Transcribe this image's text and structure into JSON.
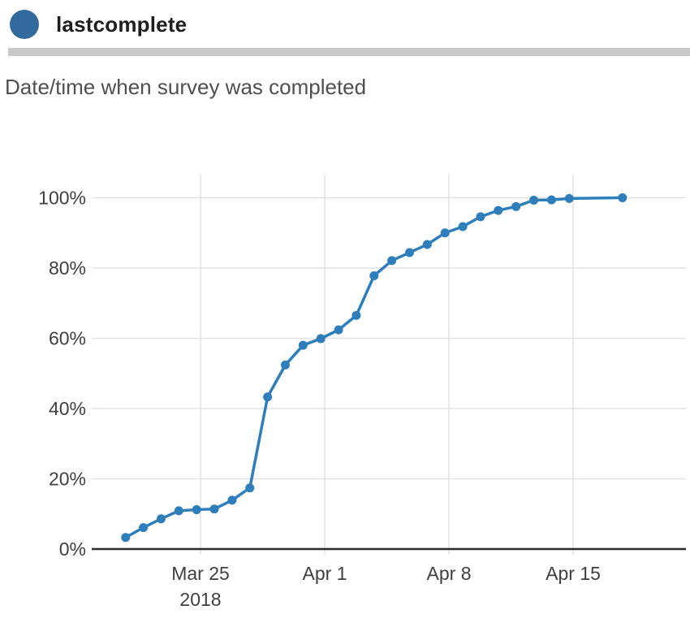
{
  "header": {
    "variable_name": "lastcomplete",
    "description": "Date/time when survey was completed",
    "dot_color": "#336a9e"
  },
  "chart_data": {
    "type": "line",
    "title": "",
    "xlabel": "",
    "ylabel": "",
    "ylim": [
      0,
      100
    ],
    "grid": true,
    "legend": "none",
    "line_color": "#2e7ebc",
    "gridline_color": "#e2e2e2",
    "axis_line_color": "#2b2b2b",
    "tick_label_color": "#3f3f3f",
    "y_ticks": [
      {
        "value": 0,
        "label": "0%"
      },
      {
        "value": 20,
        "label": "20%"
      },
      {
        "value": 40,
        "label": "40%"
      },
      {
        "value": 60,
        "label": "60%"
      },
      {
        "value": 80,
        "label": "80%"
      },
      {
        "value": 100,
        "label": "100%"
      }
    ],
    "x_ticks": [
      {
        "day_offset": 0,
        "label": "Mar 25",
        "sublabel": "2018"
      },
      {
        "day_offset": 7,
        "label": "Apr 1",
        "sublabel": ""
      },
      {
        "day_offset": 14,
        "label": "Apr 8",
        "sublabel": ""
      },
      {
        "day_offset": 21,
        "label": "Apr 15",
        "sublabel": ""
      }
    ],
    "points": [
      {
        "date": "Mar 20 2018",
        "day_offset": -4.22,
        "value": 3.3
      },
      {
        "date": "Mar 21 2018",
        "day_offset": -3.22,
        "value": 6.1
      },
      {
        "date": "Mar 22 2018",
        "day_offset": -2.22,
        "value": 8.6
      },
      {
        "date": "Mar 23 2018",
        "day_offset": -1.22,
        "value": 10.9
      },
      {
        "date": "Mar 24 2018",
        "day_offset": -0.22,
        "value": 11.2
      },
      {
        "date": "Mar 25 2018",
        "day_offset": 0.78,
        "value": 11.4
      },
      {
        "date": "Mar 26 2018",
        "day_offset": 1.78,
        "value": 13.9
      },
      {
        "date": "Mar 27 2018",
        "day_offset": 2.78,
        "value": 17.4
      },
      {
        "date": "Mar 28 2018",
        "day_offset": 3.78,
        "value": 43.3
      },
      {
        "date": "Mar 29 2018",
        "day_offset": 4.78,
        "value": 52.4
      },
      {
        "date": "Mar 30 2018",
        "day_offset": 5.78,
        "value": 58.0
      },
      {
        "date": "Mar 31 2018",
        "day_offset": 6.78,
        "value": 59.9
      },
      {
        "date": "Apr 1 2018",
        "day_offset": 7.78,
        "value": 62.4
      },
      {
        "date": "Apr 2 2018",
        "day_offset": 8.78,
        "value": 66.5
      },
      {
        "date": "Apr 3 2018",
        "day_offset": 9.78,
        "value": 77.8
      },
      {
        "date": "Apr 4 2018",
        "day_offset": 10.78,
        "value": 82.1
      },
      {
        "date": "Apr 5 2018",
        "day_offset": 11.78,
        "value": 84.4
      },
      {
        "date": "Apr 6 2018",
        "day_offset": 12.78,
        "value": 86.7
      },
      {
        "date": "Apr 7 2018",
        "day_offset": 13.78,
        "value": 90.0
      },
      {
        "date": "Apr 8 2018",
        "day_offset": 14.78,
        "value": 91.8
      },
      {
        "date": "Apr 9 2018",
        "day_offset": 15.78,
        "value": 94.6
      },
      {
        "date": "Apr 10 2018",
        "day_offset": 16.78,
        "value": 96.4
      },
      {
        "date": "Apr 11 2018",
        "day_offset": 17.78,
        "value": 97.5
      },
      {
        "date": "Apr 12 2018",
        "day_offset": 18.78,
        "value": 99.3
      },
      {
        "date": "Apr 13 2018",
        "day_offset": 19.78,
        "value": 99.4
      },
      {
        "date": "Apr 14 2018",
        "day_offset": 20.78,
        "value": 99.8
      },
      {
        "date": "Apr 17 2018",
        "day_offset": 23.78,
        "value": 100.0
      }
    ]
  }
}
